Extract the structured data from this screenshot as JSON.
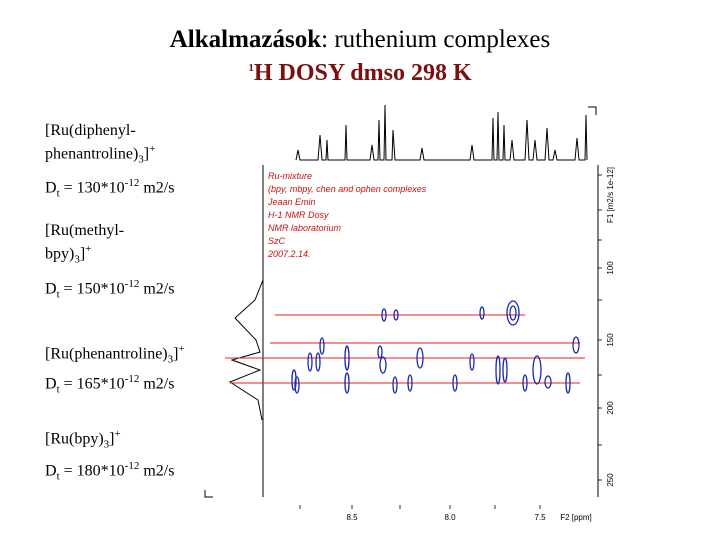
{
  "header": {
    "title_bold": "Alkalmazások",
    "title_rest": ": ruthenium complexes",
    "subtitle_sup": "1",
    "subtitle": "H DOSY dmso 298 K"
  },
  "compounds": [
    {
      "formula": [
        "[Ru(diphenyl-",
        "phenantroline)",
        "3",
        "]",
        "+"
      ],
      "dt": [
        "D",
        "t",
        " = 130*10",
        "-12",
        " m2/s"
      ]
    },
    {
      "formula": [
        "[Ru(methyl-",
        "bpy)",
        "3",
        "]",
        "+"
      ],
      "dt": [
        "D",
        "t",
        " = 150*10",
        "-12",
        " m2/s"
      ]
    },
    {
      "formula": [
        "[Ru(phenantroline)",
        "3",
        "]",
        "+"
      ],
      "dt": [
        "D",
        "t",
        " = 165*10",
        "-12",
        " m2/s"
      ]
    },
    {
      "formula": [
        "[Ru(bpy)",
        "3",
        "]",
        "+"
      ],
      "dt": [
        "D",
        "t",
        " = 180*10",
        "-12",
        " m2/s"
      ]
    }
  ],
  "spectrum": {
    "notes": [
      "Ru-mixture",
      "(bpy, mbpy, chen and ophen complexes",
      "Jeaan Emin",
      "H-1 NMR Dosy",
      "NMR laboratorium",
      "SzC",
      "2007.2.14."
    ],
    "x_labels": [
      "8.5",
      "8.0",
      "7.5"
    ],
    "x_title": "F2 [ppm]",
    "y_labels": [
      "100",
      "150",
      "200",
      "250"
    ],
    "y_title": "F1 [m2/s 1e-12]"
  }
}
